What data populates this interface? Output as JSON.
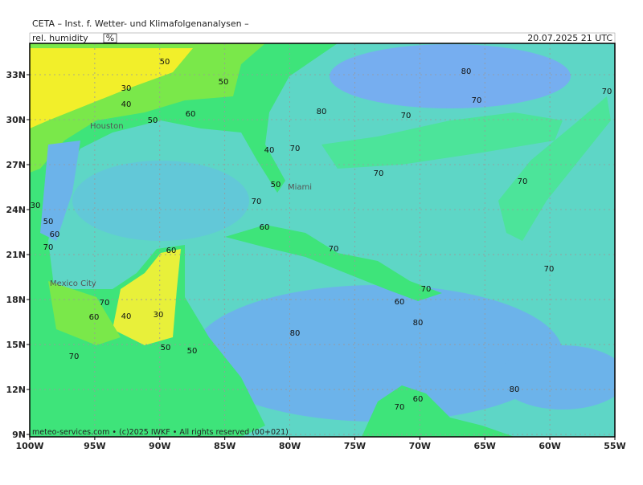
{
  "header": {
    "title": "CETA – Inst. f. Wetter- und Klimafolgenanalysen –",
    "variable": "rel. humidity",
    "unit": "%",
    "valid_time": "20.07.2025 21 UTC"
  },
  "map": {
    "lat_labels": [
      "33N",
      "30N",
      "27N",
      "24N",
      "21N",
      "18N",
      "15N",
      "12N",
      "9N"
    ],
    "lon_labels": [
      "100W",
      "95W",
      "90W",
      "85W",
      "80W",
      "75W",
      "70W",
      "65W",
      "60W",
      "55W"
    ],
    "places": [
      "Miami",
      "Mexico City",
      "Houston"
    ],
    "contour_labels": [
      "80",
      "70",
      "80",
      "70",
      "70",
      "70",
      "70",
      "70",
      "80",
      "80",
      "80",
      "70",
      "70",
      "70",
      "70",
      "40",
      "50",
      "50",
      "60",
      "50",
      "30",
      "40",
      "50",
      "30",
      "50",
      "60",
      "70",
      "60",
      "40",
      "30",
      "60",
      "50",
      "50",
      "60",
      "70",
      "70",
      "60",
      "60",
      "70"
    ]
  },
  "footer": {
    "credit": "meteo-services.com • (c)2025 IWKF • All rights reserved (00+021)"
  }
}
